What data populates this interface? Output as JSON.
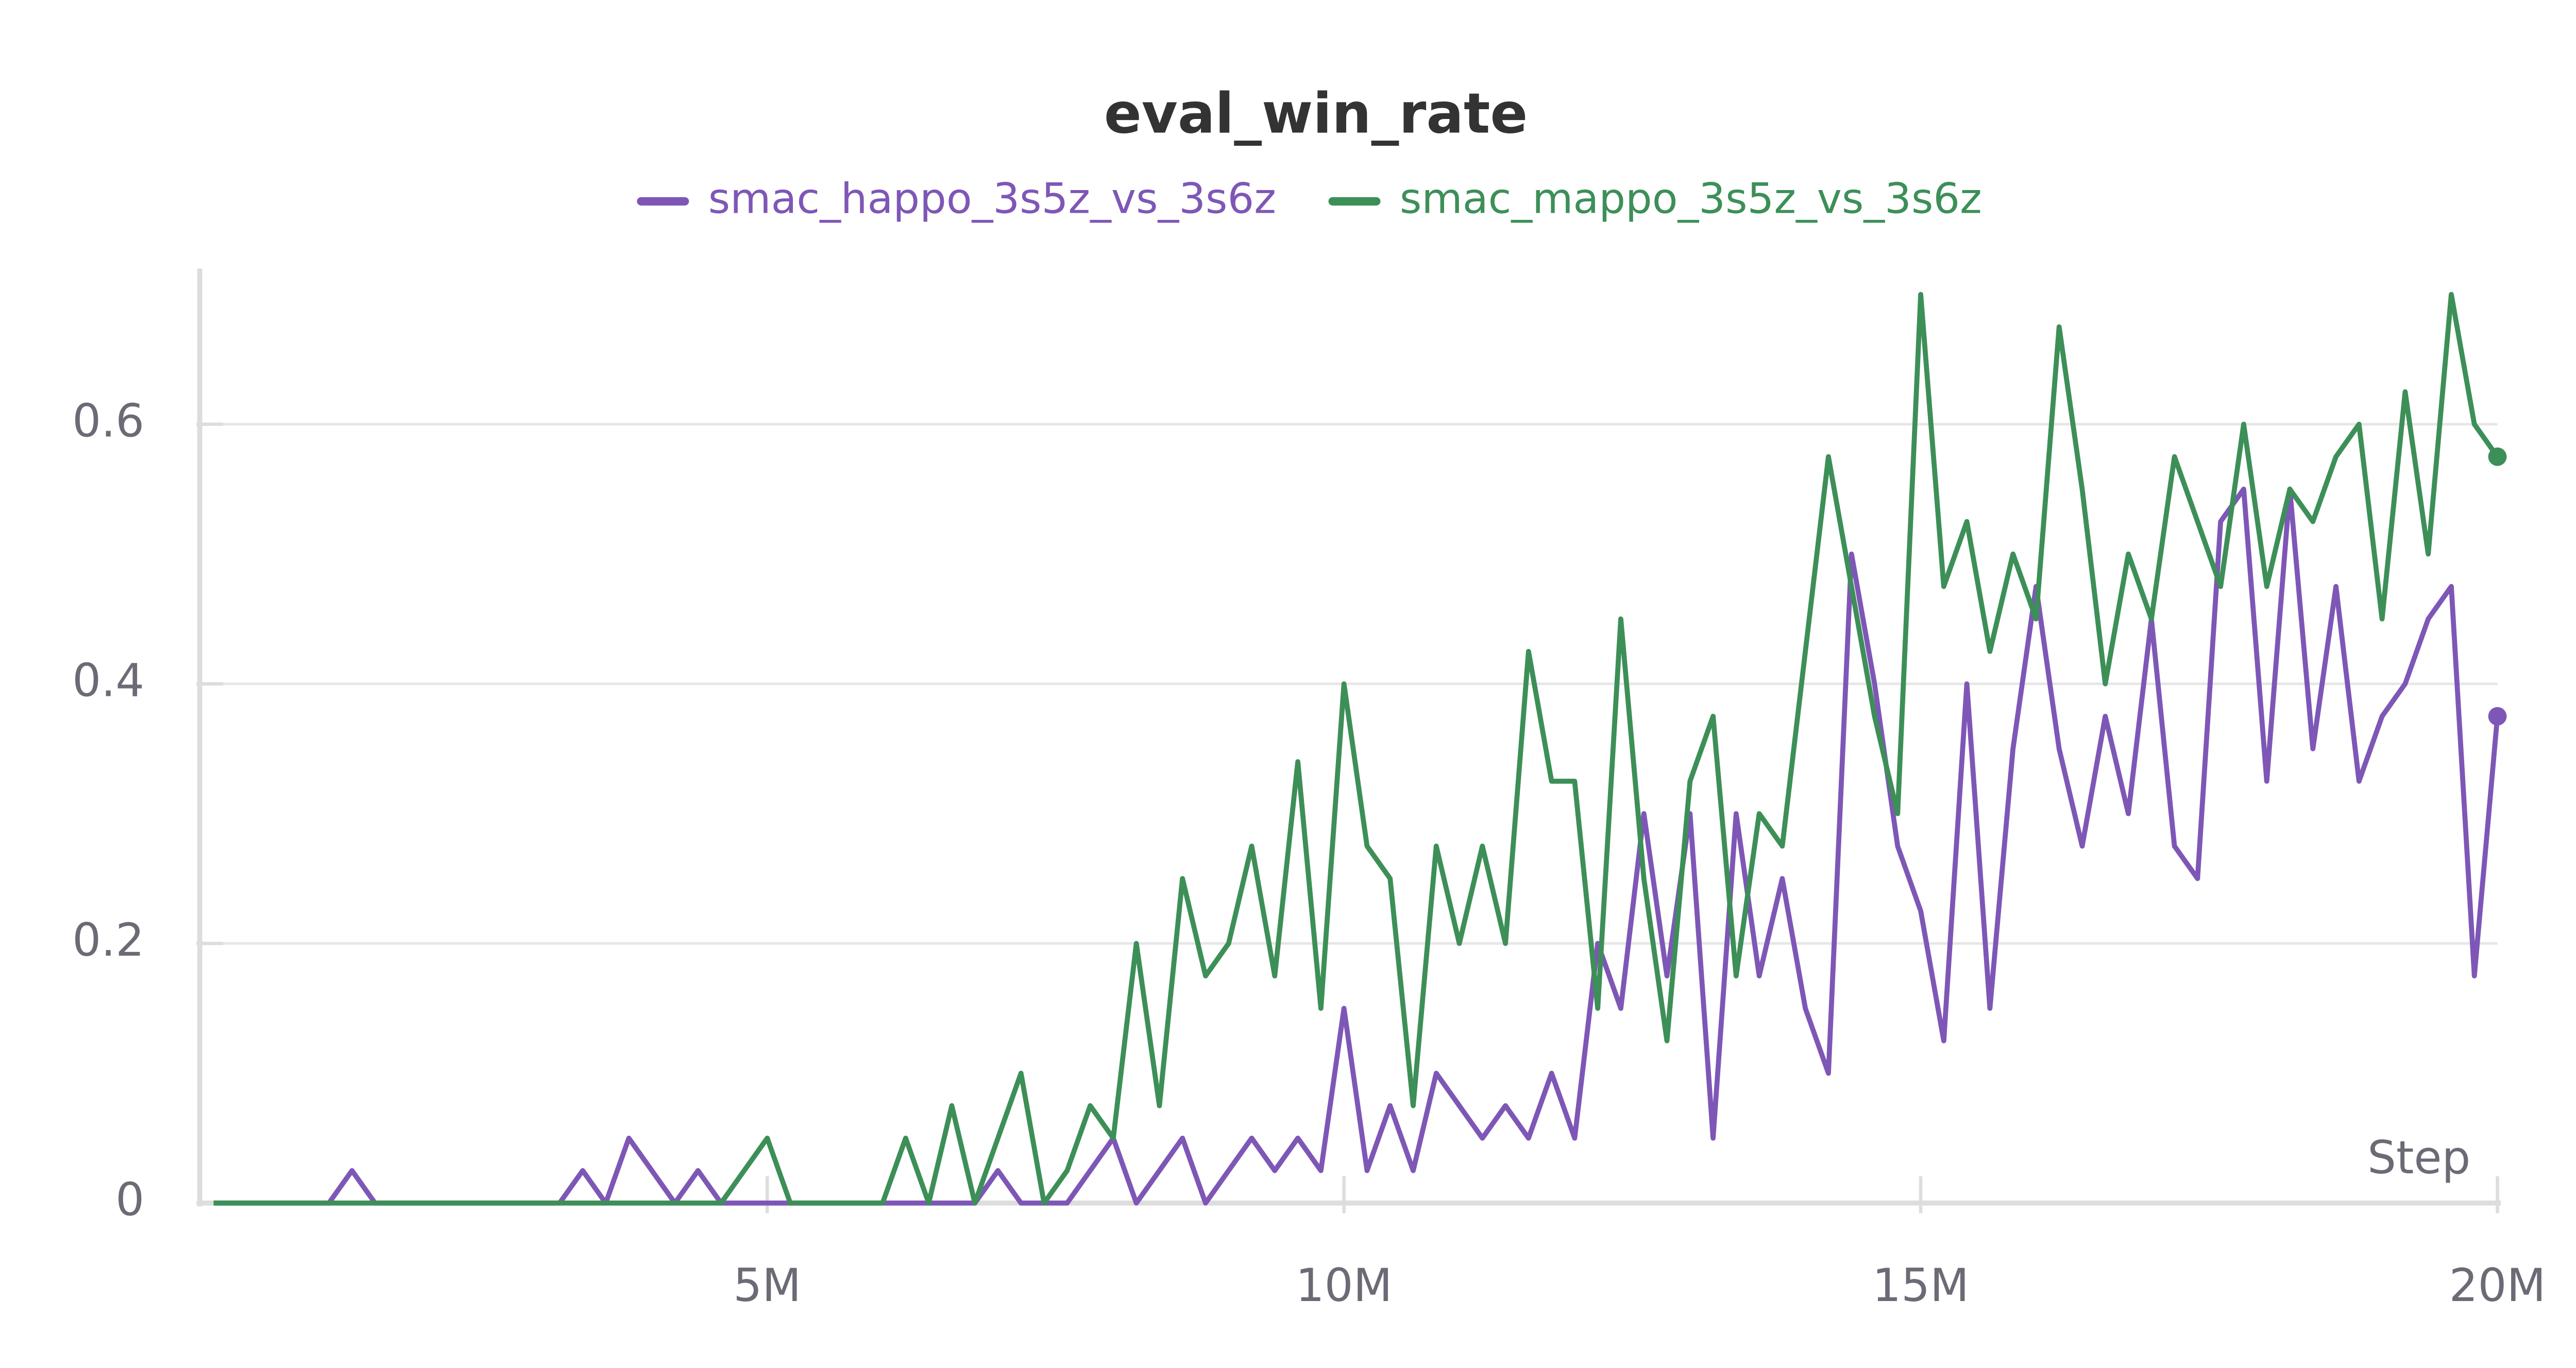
{
  "chart_data": {
    "type": "line",
    "title": "eval_win_rate",
    "xlabel": "Step",
    "x": [
      200000,
      400000,
      600000,
      800000,
      1000000,
      1200000,
      1400000,
      1600000,
      1800000,
      2000000,
      2200000,
      2400000,
      2600000,
      2800000,
      3000000,
      3200000,
      3400000,
      3600000,
      3800000,
      4000000,
      4200000,
      4400000,
      4600000,
      4800000,
      5000000,
      5200000,
      5400000,
      5600000,
      5800000,
      6000000,
      6200000,
      6400000,
      6600000,
      6800000,
      7000000,
      7200000,
      7400000,
      7600000,
      7800000,
      8000000,
      8200000,
      8400000,
      8600000,
      8800000,
      9000000,
      9200000,
      9400000,
      9600000,
      9800000,
      10000000,
      10200000,
      10400000,
      10600000,
      10800000,
      11000000,
      11200000,
      11400000,
      11600000,
      11800000,
      12000000,
      12200000,
      12400000,
      12600000,
      12800000,
      13000000,
      13200000,
      13400000,
      13600000,
      13800000,
      14000000,
      14200000,
      14400000,
      14600000,
      14800000,
      15000000,
      15200000,
      15400000,
      15600000,
      15800000,
      16000000,
      16200000,
      16400000,
      16600000,
      16800000,
      17000000,
      17200000,
      17400000,
      17600000,
      17800000,
      18000000,
      18200000,
      18400000,
      18600000,
      18800000,
      19000000,
      19200000,
      19400000,
      19600000,
      19800000,
      20000000
    ],
    "series": [
      {
        "name": "smac_happo_3s5z_vs_3s6z",
        "color": "#7e57b6",
        "values": [
          0,
          0,
          0,
          0,
          0,
          0,
          0.025,
          0,
          0,
          0,
          0,
          0,
          0,
          0,
          0,
          0,
          0.025,
          0,
          0.05,
          0.025,
          0,
          0.025,
          0,
          0,
          0,
          0,
          0,
          0,
          0,
          0,
          0,
          0,
          0,
          0,
          0.025,
          0,
          0,
          0,
          0.025,
          0.05,
          0,
          0.025,
          0.05,
          0,
          0.025,
          0.05,
          0.025,
          0.05,
          0.025,
          0.15,
          0.025,
          0.075,
          0.025,
          0.1,
          0.075,
          0.05,
          0.075,
          0.05,
          0.1,
          0.05,
          0.2,
          0.15,
          0.3,
          0.175,
          0.3,
          0.05,
          0.3,
          0.175,
          0.25,
          0.15,
          0.1,
          0.5,
          0.4,
          0.275,
          0.225,
          0.125,
          0.4,
          0.15,
          0.35,
          0.475,
          0.35,
          0.275,
          0.375,
          0.3,
          0.45,
          0.275,
          0.25,
          0.525,
          0.55,
          0.325,
          0.55,
          0.35,
          0.475,
          0.325,
          0.375,
          0.4,
          0.45,
          0.475,
          0.175,
          0.375
        ]
      },
      {
        "name": "smac_mappo_3s5z_vs_3s6z",
        "color": "#3d8f58",
        "values": [
          0,
          0,
          0,
          0,
          0,
          0,
          0,
          0,
          0,
          0,
          0,
          0,
          0,
          0,
          0,
          0,
          0,
          0,
          0,
          0,
          0,
          0,
          0,
          0.025,
          0.05,
          0,
          0,
          0,
          0,
          0,
          0.05,
          0,
          0.075,
          0,
          0.05,
          0.1,
          0,
          0.025,
          0.075,
          0.05,
          0.2,
          0.075,
          0.25,
          0.175,
          0.2,
          0.275,
          0.175,
          0.34,
          0.15,
          0.4,
          0.275,
          0.25,
          0.075,
          0.275,
          0.2,
          0.275,
          0.2,
          0.425,
          0.325,
          0.325,
          0.15,
          0.45,
          0.25,
          0.125,
          0.325,
          0.375,
          0.175,
          0.3,
          0.275,
          0.425,
          0.575,
          0.475,
          0.375,
          0.3,
          0.7,
          0.475,
          0.525,
          0.425,
          0.5,
          0.45,
          0.675,
          0.55,
          0.4,
          0.5,
          0.45,
          0.575,
          0.525,
          0.475,
          0.6,
          0.475,
          0.55,
          0.525,
          0.575,
          0.6,
          0.45,
          0.625,
          0.5,
          0.7,
          0.6,
          0.575
        ]
      }
    ],
    "xlim": [
      0,
      20000000
    ],
    "xticks": [
      {
        "value": 5000000,
        "label": "5M"
      },
      {
        "value": 10000000,
        "label": "10M"
      },
      {
        "value": 15000000,
        "label": "15M"
      },
      {
        "value": 20000000,
        "label": "20M"
      }
    ],
    "ylim": [
      0,
      0.72
    ],
    "yticks": [
      0,
      0.2,
      0.4,
      0.6
    ],
    "grid": true
  }
}
